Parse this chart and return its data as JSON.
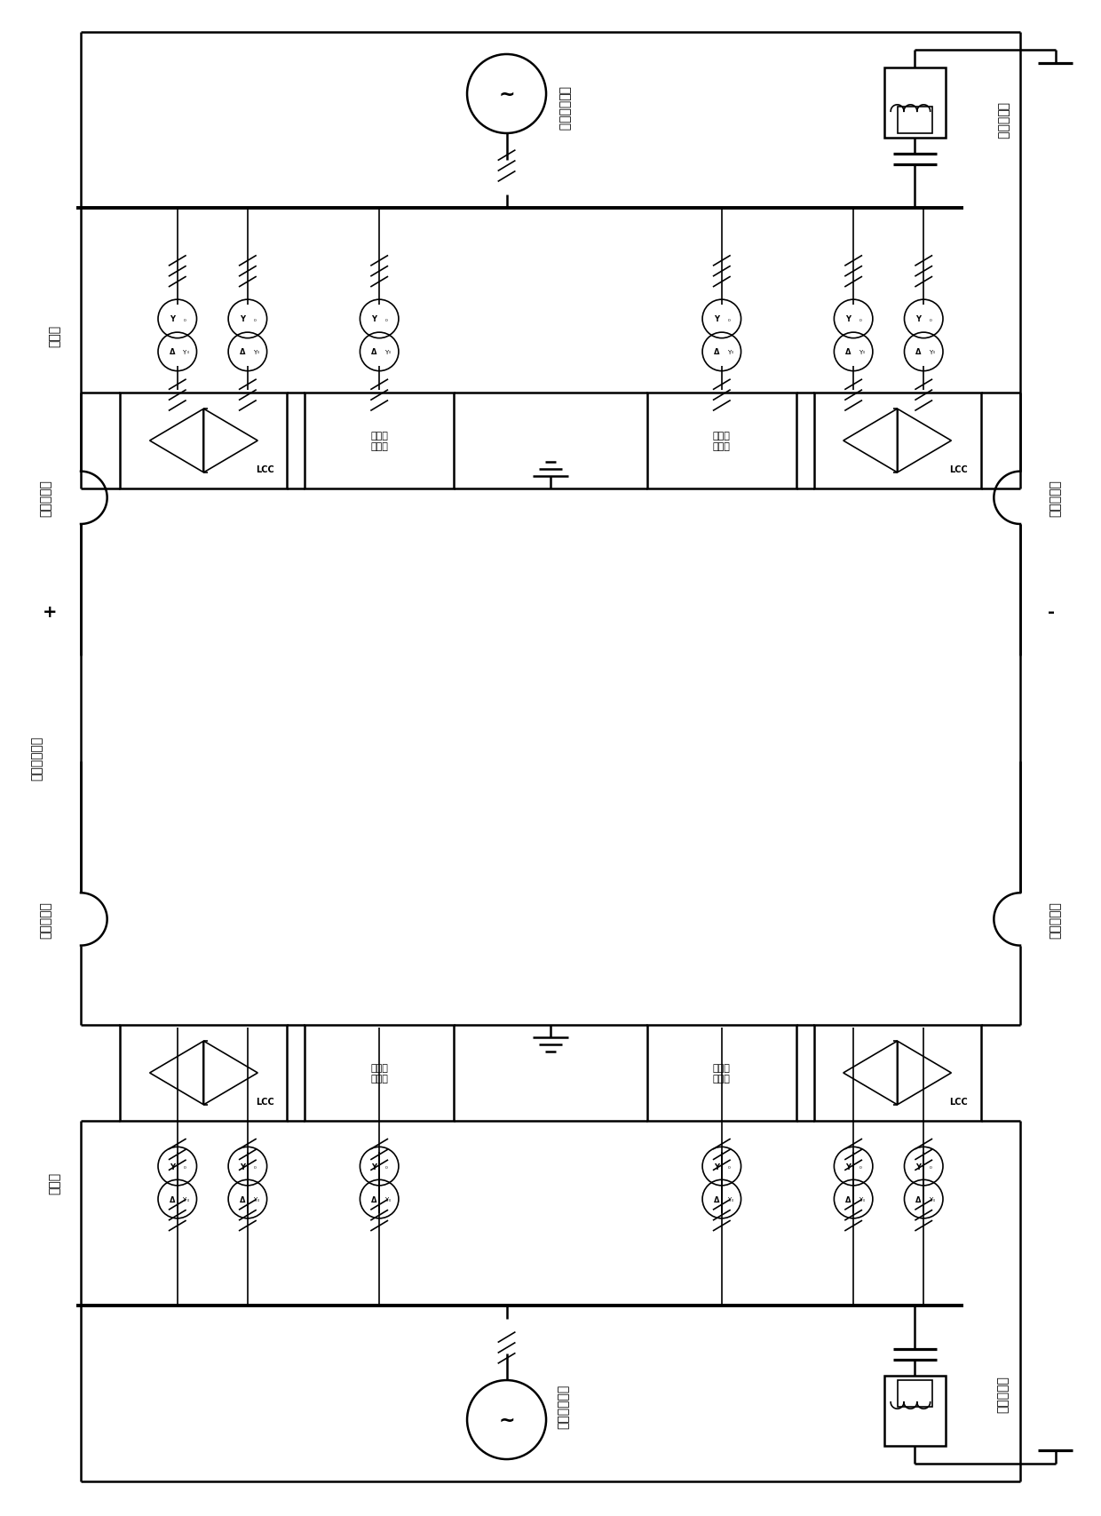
{
  "bg_color": "#ffffff",
  "lc": "#000000",
  "lw": 1.8,
  "tlw": 1.2,
  "figsize": [
    12.4,
    17.08
  ],
  "dpi": 100,
  "label_受端": "受端交流电网",
  "label_送端": "送端交流电网",
  "label_变压器": "变压器",
  "label_LCC": "LCC",
  "label_模块化换流器": "模块化\n换流器",
  "label_无源滤波器": "无源滤波器",
  "label_平波电抗器": "平波电抗器",
  "label_直流输电线路": "直流输电线路",
  "label_plus": "+",
  "label_minus": "-",
  "fs": 10,
  "fs_small": 8
}
